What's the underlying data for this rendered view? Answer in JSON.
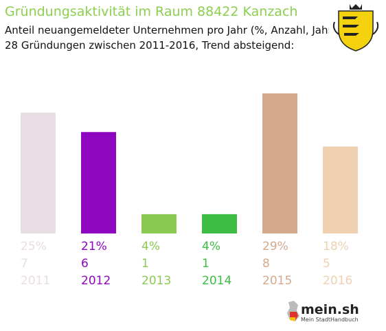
{
  "header": {
    "title": "Gründungsaktivität im Raum 88422 Kanzach",
    "subtitle_line1": "Anteil neuangemeldeter Unternehmen pro Jahr (%, Anzahl, Jahr)",
    "subtitle_line2": "28 Gründungen zwischen 2011-2016, Trend absteigend:"
  },
  "logo": {
    "name": "mein.sh",
    "tagline": "Mein StadtHandbuch"
  },
  "icons": [
    "coat-of-arms-icon",
    "germany-map-icon"
  ],
  "chart_data": {
    "type": "bar",
    "categories": [
      "2011",
      "2012",
      "2013",
      "2014",
      "2015",
      "2016"
    ],
    "values": [
      25,
      21,
      4,
      4,
      29,
      18
    ],
    "value_labels": [
      "25%",
      "21%",
      "4%",
      "4%",
      "29%",
      "18%"
    ],
    "counts": [
      "7",
      "6",
      "1",
      "1",
      "8",
      "5"
    ],
    "colors": [
      "#e8dde3",
      "#8e06bf",
      "#8aca52",
      "#3cbc42",
      "#d4a98c",
      "#efd0b0"
    ],
    "ylim": [
      0,
      29
    ]
  }
}
